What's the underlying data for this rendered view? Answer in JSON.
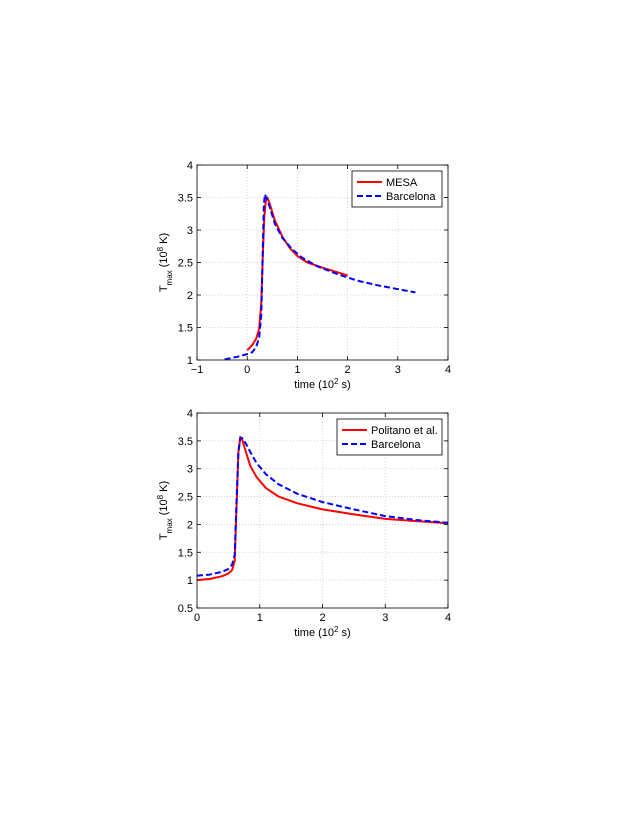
{
  "chart_data": [
    {
      "type": "line",
      "xlim": [
        -1,
        4
      ],
      "ylim": [
        1,
        4
      ],
      "xticks": [
        "−1",
        "0",
        "1",
        "2",
        "3",
        "4"
      ],
      "yticks": [
        "1",
        "1.5",
        "2",
        "2.5",
        "3",
        "3.5",
        "4"
      ],
      "xlabel": {
        "main": "time (10",
        "sup": "2",
        "end": " s)"
      },
      "ylabel": {
        "main": "T",
        "sub": "max",
        "mid": " (10",
        "sup": "8",
        "end": " K)"
      },
      "grid": true,
      "legend": "top-right",
      "series": [
        {
          "name": "MESA",
          "color": "#ff0000",
          "style": "solid",
          "x": [
            0.0,
            0.1,
            0.18,
            0.24,
            0.28,
            0.31,
            0.34,
            0.37,
            0.4,
            0.45,
            0.55,
            0.7,
            0.85,
            1.0,
            1.2,
            1.5,
            1.8,
            2.0
          ],
          "y": [
            1.15,
            1.23,
            1.33,
            1.48,
            1.9,
            2.6,
            3.2,
            3.45,
            3.5,
            3.4,
            3.15,
            2.9,
            2.72,
            2.6,
            2.5,
            2.42,
            2.35,
            2.3
          ]
        },
        {
          "name": "Barcelona",
          "color": "#0000ff",
          "style": "dashed",
          "x": [
            -0.45,
            -0.2,
            0.0,
            0.1,
            0.18,
            0.24,
            0.28,
            0.31,
            0.33,
            0.35,
            0.38,
            0.45,
            0.55,
            0.7,
            0.9,
            1.1,
            1.4,
            1.8,
            2.2,
            2.6,
            3.0,
            3.35
          ],
          "y": [
            1.01,
            1.05,
            1.09,
            1.12,
            1.2,
            1.35,
            1.7,
            2.7,
            3.35,
            3.55,
            3.5,
            3.35,
            3.1,
            2.88,
            2.7,
            2.57,
            2.44,
            2.32,
            2.22,
            2.15,
            2.09,
            2.04
          ]
        }
      ]
    },
    {
      "type": "line",
      "xlim": [
        0,
        4
      ],
      "ylim": [
        0.5,
        4
      ],
      "xticks": [
        "0",
        "1",
        "2",
        "3",
        "4"
      ],
      "yticks": [
        "0.5",
        "1",
        "1.5",
        "2",
        "2.5",
        "3",
        "3.5",
        "4"
      ],
      "xlabel": {
        "main": "time (10",
        "sup": "2",
        "end": " s)"
      },
      "ylabel": {
        "main": "T",
        "sub": "max",
        "mid": " (10",
        "sup": "8",
        "end": " K)"
      },
      "grid": true,
      "legend": "top-right",
      "series": [
        {
          "name": "Politano et al.",
          "color": "#ff0000",
          "style": "solid",
          "x": [
            0.0,
            0.2,
            0.4,
            0.5,
            0.56,
            0.6,
            0.63,
            0.66,
            0.69,
            0.72,
            0.78,
            0.85,
            0.95,
            1.1,
            1.3,
            1.6,
            2.0,
            2.5,
            3.0,
            3.5,
            4.0
          ],
          "y": [
            1.0,
            1.02,
            1.07,
            1.12,
            1.18,
            1.35,
            2.3,
            3.3,
            3.57,
            3.52,
            3.3,
            3.05,
            2.85,
            2.65,
            2.5,
            2.38,
            2.27,
            2.18,
            2.1,
            2.06,
            2.02
          ]
        },
        {
          "name": "Barcelona",
          "color": "#0000ff",
          "style": "dashed",
          "x": [
            0.0,
            0.2,
            0.4,
            0.5,
            0.56,
            0.6,
            0.63,
            0.66,
            0.69,
            0.72,
            0.78,
            0.85,
            0.95,
            1.1,
            1.3,
            1.6,
            2.0,
            2.5,
            3.0,
            3.5,
            4.0
          ],
          "y": [
            1.08,
            1.1,
            1.15,
            1.2,
            1.28,
            1.45,
            2.4,
            3.3,
            3.55,
            3.55,
            3.45,
            3.3,
            3.1,
            2.9,
            2.72,
            2.55,
            2.4,
            2.27,
            2.15,
            2.08,
            2.03
          ]
        }
      ]
    }
  ]
}
